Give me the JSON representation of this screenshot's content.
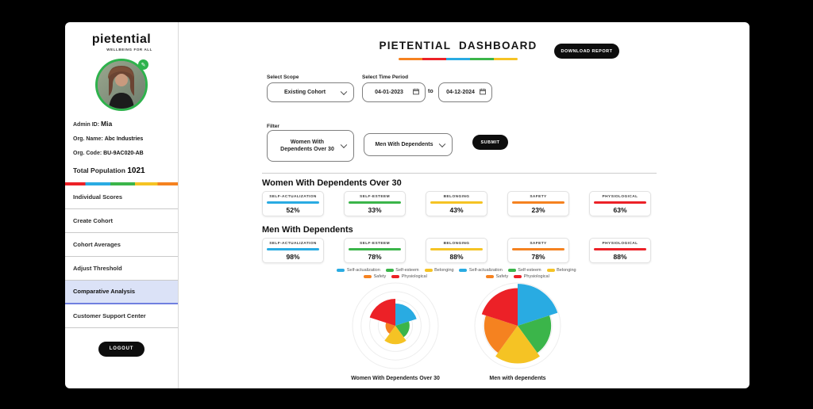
{
  "colors": {
    "blue": "#29ABE2",
    "green": "#3BB54A",
    "yellow": "#F5C324",
    "orange": "#F58220",
    "red": "#EC2127",
    "active_item_bg": "#DBE2F7",
    "active_item_border": "#7080E0",
    "button_bg": "#0D0D0D"
  },
  "sidebar": {
    "logo": {
      "text": "pietential",
      "tagline": "WELLBEING FOR ALL"
    },
    "profile": {
      "admin_label": "Admin ID:",
      "admin_name": "Mia",
      "org_name_label": "Org. Name:",
      "org_name": "Abc Industries",
      "org_code_label": "Org. Code:",
      "org_code": "BU-9AC020-AB",
      "population_label": "Total Population",
      "population_value": "1021"
    },
    "items": [
      {
        "label": "Individual Scores"
      },
      {
        "label": "Create Cohort"
      },
      {
        "label": "Cohort Averages"
      },
      {
        "label": "Adjust Threshold"
      },
      {
        "label": "Comparative Analysis",
        "active": true
      },
      {
        "label": "Customer Support Center"
      }
    ],
    "logout_label": "LOGOUT"
  },
  "header": {
    "title": "PIETENTIAL DASHBOARD",
    "download_label": "DOWNLOAD REPORT"
  },
  "filters": {
    "scope_label": "Select Scope",
    "scope_value": "Existing Cohort",
    "time_label": "Select Time Period",
    "date_from": "04-01-2023",
    "to_word": "to",
    "date_to": "04-12-2024",
    "filter_label": "Filter",
    "filter1_value": "Women With Dependents Over 30",
    "filter2_value": "Men With Dependents",
    "submit_label": "SUBMIT"
  },
  "groups": [
    {
      "heading": "Women With Dependents Over 30",
      "cards": [
        {
          "label": "SELF-ACTUALIZATION",
          "value": "52%",
          "color": "#29ABE2"
        },
        {
          "label": "SELF-ESTEEM",
          "value": "33%",
          "color": "#3BB54A"
        },
        {
          "label": "BELONGING",
          "value": "43%",
          "color": "#F5C324"
        },
        {
          "label": "SAFETY",
          "value": "23%",
          "color": "#F58220"
        },
        {
          "label": "PHYSIOLOGICAL",
          "value": "63%",
          "color": "#EC2127"
        }
      ]
    },
    {
      "heading": "Men With Dependents",
      "cards": [
        {
          "label": "SELF-ACTUALIZATION",
          "value": "98%",
          "color": "#29ABE2"
        },
        {
          "label": "SELF-ESTEEM",
          "value": "78%",
          "color": "#3BB54A"
        },
        {
          "label": "BELONGING",
          "value": "88%",
          "color": "#F5C324"
        },
        {
          "label": "SAFETY",
          "value": "78%",
          "color": "#F58220"
        },
        {
          "label": "PHYSIOLOGICAL",
          "value": "88%",
          "color": "#EC2127"
        }
      ]
    }
  ],
  "chart_data": [
    {
      "type": "polar-area",
      "title": "Women With Dependents Over 30",
      "categories": [
        "Self-actualization",
        "Self-esteem",
        "Belonging",
        "Safety",
        "Physiological"
      ],
      "values": [
        52,
        33,
        43,
        23,
        63
      ],
      "colors": [
        "#29ABE2",
        "#3BB54A",
        "#F5C324",
        "#F58220",
        "#EC2127"
      ],
      "rlim": [
        0,
        100
      ],
      "grid": true,
      "grid_rings": 5,
      "start_angle_deg": -90,
      "direction": "clockwise",
      "legend_position": "top"
    },
    {
      "type": "polar-area",
      "title": "Men with dependents",
      "categories": [
        "Self-actualization",
        "Self-esteem",
        "Belonging",
        "Safety",
        "Physiological"
      ],
      "values": [
        98,
        78,
        88,
        78,
        88
      ],
      "colors": [
        "#29ABE2",
        "#3BB54A",
        "#F5C324",
        "#F58220",
        "#EC2127"
      ],
      "rlim": [
        0,
        100
      ],
      "grid": true,
      "grid_rings": 5,
      "start_angle_deg": -90,
      "direction": "clockwise",
      "legend_position": "top"
    }
  ]
}
